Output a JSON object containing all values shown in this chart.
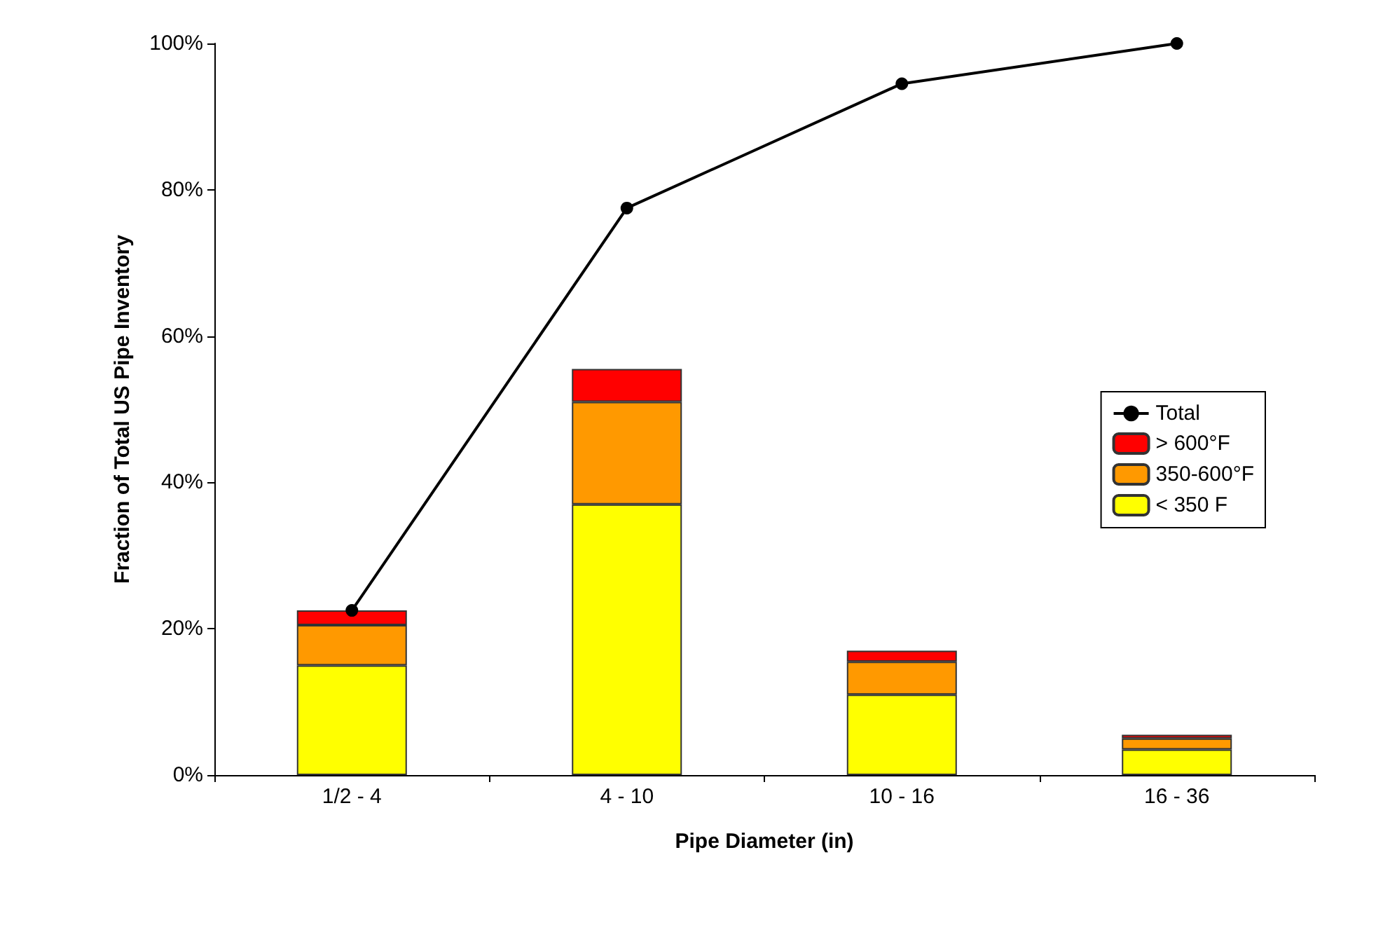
{
  "chart_data": {
    "type": "bar",
    "stacked": true,
    "categories": [
      "1/2 - 4",
      "4 - 10",
      "10 - 16",
      "16 - 36"
    ],
    "xlabel": "Pipe Diameter (in)",
    "ylabel": "Fraction of Total US Pipe Inventory",
    "series": [
      {
        "name": "< 350 F",
        "color": "#ffff00",
        "values": [
          15,
          37,
          11,
          3.5
        ]
      },
      {
        "name": "350-600°F",
        "color": "#ff9900",
        "values": [
          5.5,
          14,
          4.5,
          1.5
        ]
      },
      {
        "name": "> 600°F",
        "color": "#ff0000",
        "values": [
          2,
          4.5,
          1.5,
          0.5
        ]
      },
      {
        "name": "Total",
        "type": "line",
        "color": "#000000",
        "marker": "circle",
        "values": [
          22.5,
          77.5,
          94.5,
          100
        ]
      }
    ],
    "ylim": [
      0,
      100
    ],
    "yticks": [
      {
        "value": 0,
        "label": "0%"
      },
      {
        "value": 20,
        "label": "20%"
      },
      {
        "value": 40,
        "label": "40%"
      },
      {
        "value": 60,
        "label": "60%"
      },
      {
        "value": 80,
        "label": "80%"
      },
      {
        "value": 100,
        "label": "100%"
      }
    ],
    "grid": false,
    "legend": "right"
  }
}
